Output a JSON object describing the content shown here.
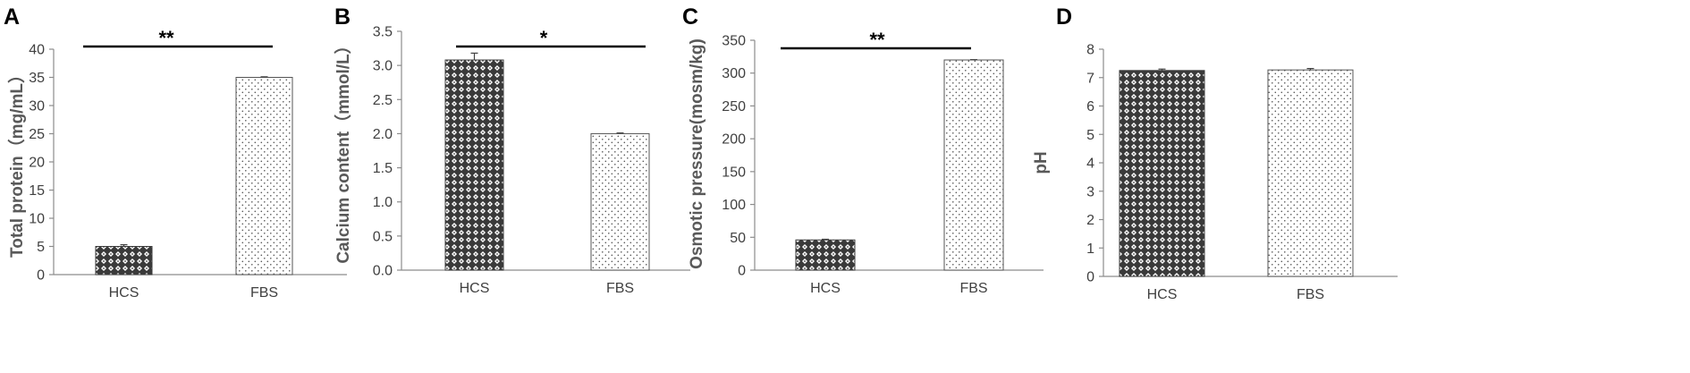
{
  "chart_data": [
    {
      "type": "bar",
      "panel": "A",
      "categories": [
        "HCS",
        "FBS"
      ],
      "values": [
        5.0,
        35.0
      ],
      "errors": [
        0.3,
        0.1
      ],
      "ylabel": "Total protein（mg/mL）",
      "ylim": [
        0,
        40
      ],
      "yticks": [
        0,
        5,
        10,
        15,
        20,
        25,
        30,
        35,
        40
      ],
      "significance": "**",
      "grid": false
    },
    {
      "type": "bar",
      "panel": "B",
      "categories": [
        "HCS",
        "FBS"
      ],
      "values": [
        3.08,
        2.0
      ],
      "errors": [
        0.1,
        0.01
      ],
      "ylabel": "Calcium content（mmol/L）",
      "ylim": [
        0,
        3.5
      ],
      "yticks": [
        "0.0",
        "0.5",
        "1.0",
        "1.5",
        "2.0",
        "2.5",
        "3.0",
        "3.5"
      ],
      "significance": "*",
      "grid": false
    },
    {
      "type": "bar",
      "panel": "C",
      "categories": [
        "HCS",
        "FBS"
      ],
      "values": [
        46,
        320
      ],
      "errors": [
        1.0,
        0.5
      ],
      "ylabel": "Osmotic pressure(mosm/kg)",
      "ylim": [
        0,
        350
      ],
      "yticks": [
        0,
        50,
        100,
        150,
        200,
        250,
        300,
        350
      ],
      "significance": "**",
      "grid": false
    },
    {
      "type": "bar",
      "panel": "D",
      "categories": [
        "HCS",
        "FBS"
      ],
      "values": [
        7.25,
        7.27
      ],
      "errors": [
        0.05,
        0.05
      ],
      "ylabel": "pH",
      "ylim": [
        0,
        8
      ],
      "yticks": [
        0,
        1,
        2,
        3,
        4,
        5,
        6,
        7,
        8
      ],
      "significance": "",
      "grid": false
    }
  ],
  "colors": {
    "hcs_fill_base": "#ffffff",
    "hcs_pattern": "#3a3a3a",
    "fbs_fill_base": "#ffffff",
    "fbs_dots": "#555555",
    "axis": "#8c8c8c",
    "text": "#404040"
  }
}
